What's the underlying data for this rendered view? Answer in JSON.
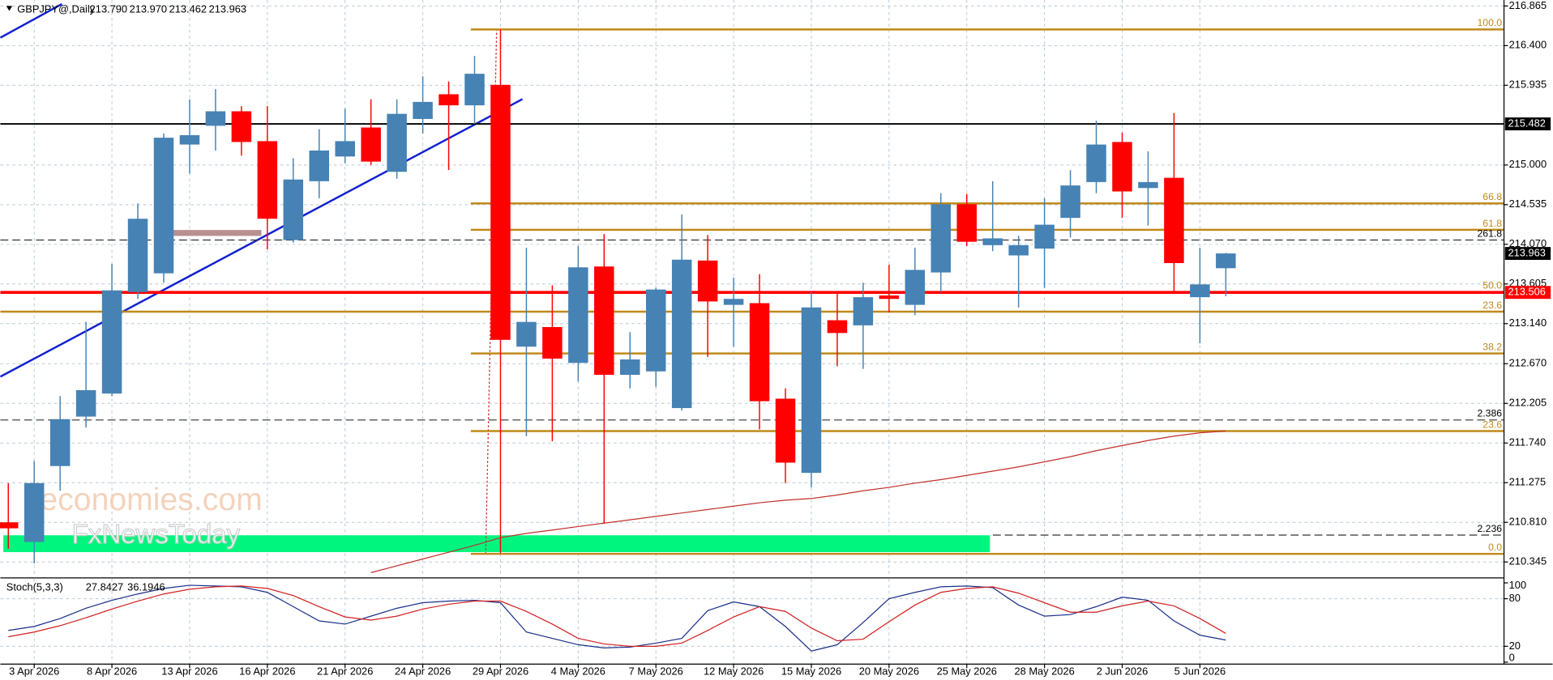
{
  "chart_data": {
    "type": "candlestick",
    "title": "GBPJPY@,Daily",
    "header": [
      "213.790",
      "213.970",
      "213.462",
      "213.963"
    ],
    "categories": [
      null,
      "3 Apr 2026",
      null,
      null,
      "8 Apr 2026",
      null,
      null,
      "13 Apr 2026",
      null,
      null,
      "16 Apr 2026",
      null,
      null,
      "21 Apr 2026",
      null,
      null,
      "24 Apr 2026",
      null,
      null,
      "29 Apr 2026",
      null,
      null,
      "4 May 2026",
      null,
      null,
      "7 May 2026",
      null,
      null,
      "12 May 2026",
      null,
      null,
      "15 May 2026",
      null,
      null,
      "20 May 2026",
      null,
      null,
      "25 May 2026",
      null,
      null,
      "28 May 2026",
      null,
      null,
      "2 Jun 2026",
      null,
      null,
      "5 Jun 2026",
      null
    ],
    "open": [
      210.81,
      210.58,
      211.47,
      212.05,
      212.32,
      213.51,
      213.73,
      215.24,
      215.46,
      215.63,
      215.28,
      214.12,
      214.81,
      215.1,
      215.44,
      214.92,
      215.54,
      215.83,
      215.7,
      215.94,
      212.87,
      213.1,
      212.68,
      213.81,
      212.54,
      212.58,
      212.15,
      213.88,
      213.36,
      213.38,
      212.26,
      211.39,
      213.18,
      213.12,
      213.47,
      213.36,
      213.74,
      214.54,
      214.06,
      213.94,
      214.02,
      214.38,
      214.8,
      215.27,
      214.73,
      214.85,
      213.45,
      213.79
    ],
    "high": [
      211.27,
      211.53,
      212.29,
      213.16,
      213.84,
      214.55,
      215.37,
      215.77,
      215.89,
      215.69,
      215.69,
      215.08,
      215.42,
      215.66,
      215.77,
      215.77,
      216.04,
      215.98,
      216.28,
      216.59,
      214.03,
      213.59,
      214.05,
      214.19,
      213.04,
      213.56,
      214.42,
      214.18,
      213.68,
      213.72,
      212.38,
      213.51,
      213.51,
      213.62,
      213.83,
      214.03,
      214.67,
      214.66,
      214.81,
      214.17,
      214.61,
      214.94,
      215.52,
      215.38,
      215.16,
      215.61,
      214.03,
      213.97
    ],
    "low": [
      210.5,
      210.33,
      211.18,
      211.92,
      212.29,
      213.43,
      213.62,
      214.9,
      215.17,
      215.11,
      214.01,
      214.09,
      214.61,
      215.02,
      215.0,
      214.84,
      215.37,
      214.94,
      215.48,
      210.45,
      211.82,
      211.76,
      212.46,
      210.8,
      212.38,
      212.4,
      212.12,
      212.75,
      212.87,
      211.9,
      211.27,
      211.22,
      212.64,
      212.61,
      213.27,
      213.24,
      213.51,
      214.05,
      213.99,
      213.33,
      213.56,
      214.15,
      214.67,
      214.38,
      214.29,
      213.51,
      212.91,
      213.462
    ],
    "close": [
      210.74,
      211.27,
      212.02,
      212.36,
      213.53,
      214.37,
      215.32,
      215.35,
      215.63,
      215.27,
      214.37,
      214.83,
      215.17,
      215.28,
      215.04,
      215.6,
      215.74,
      215.7,
      216.07,
      212.95,
      213.16,
      212.73,
      213.8,
      212.54,
      212.72,
      213.54,
      213.89,
      213.4,
      213.43,
      212.23,
      211.51,
      213.33,
      213.03,
      213.45,
      213.43,
      213.77,
      214.54,
      214.1,
      214.14,
      214.06,
      214.3,
      214.76,
      215.24,
      214.69,
      214.8,
      213.85,
      213.6,
      213.963
    ],
    "up_color": "#4682b4",
    "down_color": "#ff0000",
    "ma": {
      "color": "#c0302a",
      "values": [
        null,
        null,
        null,
        null,
        null,
        null,
        null,
        null,
        null,
        null,
        null,
        null,
        null,
        null,
        210.22,
        210.3,
        210.38,
        210.46,
        210.54,
        210.63,
        210.68,
        210.72,
        210.76,
        210.8,
        210.84,
        210.88,
        210.92,
        210.96,
        211.0,
        211.04,
        211.07,
        211.09,
        211.13,
        211.18,
        211.22,
        211.27,
        211.31,
        211.36,
        211.41,
        211.46,
        211.52,
        211.58,
        211.65,
        211.71,
        211.77,
        211.82,
        211.86,
        211.88
      ]
    },
    "ylim": [
      210.17,
      216.935
    ],
    "yticks": [
      216.865,
      {
        "value": 216.4,
        "label": "216.400"
      },
      215.935,
      {
        "value": 215.0,
        "label": "215.000"
      },
      214.535,
      {
        "value": 214.07,
        "label": "214.070"
      },
      213.605,
      {
        "value": 213.14,
        "label": "213.140"
      },
      {
        "value": 212.67,
        "label": "212.670"
      },
      212.205,
      {
        "value": 211.74,
        "label": "211.740"
      },
      211.275,
      {
        "value": 210.81,
        "label": "210.810"
      },
      210.345
    ],
    "grid": true,
    "fib_levels": [
      {
        "value": 216.59,
        "label": "100.0"
      },
      {
        "value": 214.55,
        "label": "66.8"
      },
      {
        "value": 214.24,
        "label": "61.8"
      },
      {
        "value": 213.51,
        "label": "50.0"
      },
      {
        "value": 213.28,
        "label": "23.6"
      },
      {
        "value": 212.79,
        "label": "38.2"
      },
      {
        "value": 211.88,
        "label": "23.6"
      },
      {
        "value": 210.44,
        "label": "0.0"
      }
    ],
    "fib_color": "#c08a1a",
    "dashed_levels": [
      {
        "value": 214.12,
        "label": "261.8"
      },
      {
        "value": 212.01,
        "label": "2.386"
      },
      {
        "value": 210.66,
        "label": "2.236"
      }
    ],
    "price_lines": [
      {
        "value": 215.482,
        "color": "#000000"
      },
      {
        "value": 213.506,
        "color": "#ff0000"
      }
    ],
    "watermark": [
      "economies.com",
      "FxNewsToday"
    ],
    "stoch": {
      "title": "Stoch(5,3,3)",
      "ylim": [
        0,
        100
      ],
      "yticks": [
        100,
        80,
        20,
        0
      ],
      "series": [
        {
          "name": "%K",
          "color": "#1a2f8a",
          "values": [
            40,
            45,
            55,
            68,
            78,
            86,
            93,
            97,
            96,
            95,
            88,
            70,
            52,
            48,
            58,
            68,
            75,
            77,
            78,
            75,
            38,
            30,
            22,
            18,
            19,
            24,
            30,
            65,
            76,
            70,
            45,
            14,
            22,
            50,
            80,
            88,
            95,
            96,
            94,
            72,
            58,
            60,
            70,
            82,
            78,
            52,
            34,
            27.8427
          ]
        },
        {
          "name": "%D",
          "color": "#d02020",
          "values": [
            32,
            38,
            46,
            56,
            67,
            77,
            86,
            92,
            95,
            96,
            93,
            84,
            70,
            57,
            53,
            58,
            67,
            73,
            77,
            77,
            64,
            48,
            30,
            23,
            20,
            20,
            24,
            40,
            57,
            70,
            64,
            43,
            27,
            29,
            51,
            72,
            88,
            93,
            95,
            87,
            75,
            63,
            63,
            71,
            77,
            71,
            55,
            36.1946
          ]
        }
      ]
    }
  }
}
